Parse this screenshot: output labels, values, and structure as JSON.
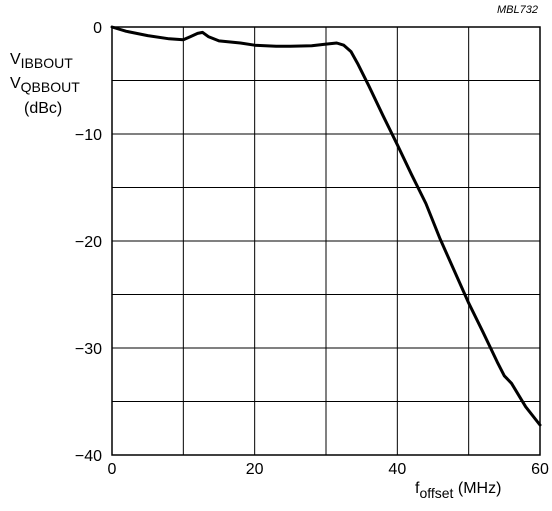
{
  "figure_id": "MBL732",
  "chart_data": {
    "type": "line",
    "ylabel_lines": [
      {
        "main": "V",
        "sub": "IBBOUT"
      },
      {
        "main": "V",
        "sub": "QBBOUT"
      },
      {
        "main": "(dBc)",
        "sub": ""
      }
    ],
    "xlabel": {
      "main": "f",
      "sub": "offset",
      "unit": " (MHz)"
    },
    "xlim": [
      0,
      60
    ],
    "ylim": [
      -40,
      0
    ],
    "xticks": [
      0,
      20,
      40,
      60
    ],
    "yticks": [
      0,
      -10,
      -20,
      -30,
      -40
    ],
    "x_grid": [
      0,
      10,
      20,
      30,
      40,
      50,
      60
    ],
    "y_grid": [
      0,
      -5,
      -10,
      -15,
      -20,
      -25,
      -30,
      -35,
      -40
    ],
    "grid": true,
    "series": [
      {
        "x": [
          0,
          2,
          5,
          8,
          10,
          11,
          12,
          12.7,
          13.5,
          15,
          18,
          20,
          23,
          25,
          28,
          30,
          31.5,
          32.5,
          33.5,
          34.5,
          36,
          38,
          40,
          42,
          44,
          46,
          48,
          50,
          52,
          54,
          55,
          56,
          58,
          60
        ],
        "y": [
          0,
          -0.4,
          -0.8,
          -1.1,
          -1.2,
          -0.9,
          -0.6,
          -0.5,
          -0.9,
          -1.3,
          -1.5,
          -1.7,
          -1.8,
          -1.8,
          -1.75,
          -1.6,
          -1.5,
          -1.7,
          -2.3,
          -3.5,
          -5.5,
          -8.3,
          -11.0,
          -13.8,
          -16.5,
          -19.8,
          -22.8,
          -25.8,
          -28.5,
          -31.3,
          -32.6,
          -33.3,
          -35.5,
          -37.2
        ]
      }
    ]
  }
}
